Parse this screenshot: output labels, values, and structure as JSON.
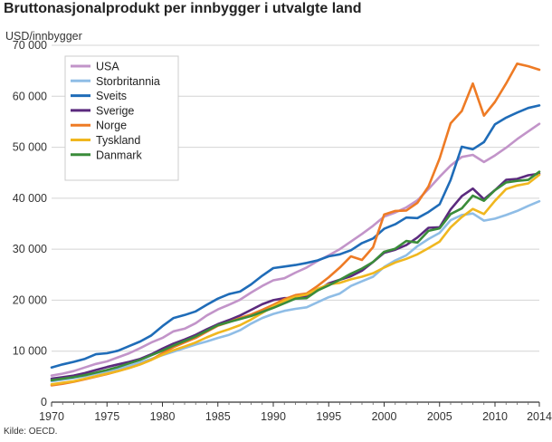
{
  "title": "Bruttonasjonalprodukt per innbygger i utvalgte land",
  "source": "Kilde: OECD.",
  "chart_data": {
    "type": "line",
    "ylabel": "USD/innbygger",
    "xlim": [
      1970,
      2014
    ],
    "ylim": [
      0,
      70000
    ],
    "grid": true,
    "legend": "top-left",
    "x": [
      1970,
      1971,
      1972,
      1973,
      1974,
      1975,
      1976,
      1977,
      1978,
      1979,
      1980,
      1981,
      1982,
      1983,
      1984,
      1985,
      1986,
      1987,
      1988,
      1989,
      1990,
      1991,
      1992,
      1993,
      1994,
      1995,
      1996,
      1997,
      1998,
      1999,
      2000,
      2001,
      2002,
      2003,
      2004,
      2005,
      2006,
      2007,
      2008,
      2009,
      2010,
      2011,
      2012,
      2013,
      2014
    ],
    "x_ticks": [
      1970,
      1975,
      1980,
      1985,
      1990,
      1995,
      2000,
      2005,
      2010,
      2014
    ],
    "y_ticks": [
      0,
      10000,
      20000,
      30000,
      40000,
      50000,
      60000,
      70000
    ],
    "y_tick_labels": [
      "0",
      "10 000",
      "20 000",
      "30 000",
      "40 000",
      "50 000",
      "60 000",
      "70 000"
    ],
    "series": [
      {
        "name": "USA",
        "color": "#c294c9",
        "values": [
          5200,
          5600,
          6100,
          6800,
          7500,
          8000,
          8800,
          9600,
          10600,
          11700,
          12600,
          13900,
          14400,
          15500,
          17000,
          18200,
          19100,
          20100,
          21500,
          22800,
          23900,
          24300,
          25400,
          26400,
          27700,
          28800,
          30000,
          31500,
          33000,
          34600,
          36400,
          37200,
          38200,
          39600,
          41800,
          44200,
          46400,
          48100,
          48500,
          47100,
          48400,
          49900,
          51600,
          53100,
          54600
        ]
      },
      {
        "name": "Storbritannia",
        "color": "#8fbde6",
        "values": [
          4100,
          4400,
          4700,
          5100,
          5600,
          6000,
          6500,
          7100,
          7800,
          8500,
          9200,
          9900,
          10600,
          11300,
          11900,
          12600,
          13200,
          14100,
          15400,
          16500,
          17300,
          17900,
          18300,
          18600,
          19600,
          20600,
          21300,
          22800,
          23700,
          24600,
          26500,
          27800,
          28800,
          30600,
          32000,
          33200,
          35700,
          36700,
          37000,
          35600,
          36000,
          36700,
          37500,
          38500,
          39400
        ]
      },
      {
        "name": "Sveits",
        "color": "#1f6cb8",
        "values": [
          6800,
          7400,
          7900,
          8500,
          9400,
          9600,
          10100,
          11000,
          11900,
          13100,
          14900,
          16500,
          17100,
          17800,
          19100,
          20300,
          21200,
          21700,
          23100,
          24800,
          26300,
          26600,
          26900,
          27300,
          27800,
          28600,
          29000,
          29800,
          31200,
          32100,
          34000,
          34900,
          36200,
          36100,
          37300,
          38800,
          43600,
          50100,
          49600,
          51000,
          54500,
          55800,
          56800,
          57700,
          58200
        ]
      },
      {
        "name": "Sverige",
        "color": "#5b2a7e",
        "values": [
          4600,
          4900,
          5200,
          5700,
          6300,
          6900,
          7400,
          7900,
          8500,
          9400,
          10500,
          11500,
          12300,
          13200,
          14300,
          15300,
          16100,
          17000,
          18100,
          19200,
          20000,
          20400,
          20400,
          20700,
          21900,
          23300,
          24000,
          24700,
          25800,
          27500,
          29300,
          29900,
          30800,
          32300,
          34200,
          34300,
          37800,
          40400,
          41900,
          39800,
          41600,
          43600,
          43800,
          44500,
          44800
        ]
      },
      {
        "name": "Norge",
        "color": "#ee7b25",
        "values": [
          3300,
          3600,
          4000,
          4500,
          5000,
          5500,
          6100,
          6700,
          7400,
          8300,
          9600,
          10800,
          11700,
          12600,
          13800,
          15000,
          15700,
          16500,
          17200,
          18100,
          19100,
          20200,
          21000,
          21300,
          22800,
          24500,
          26400,
          28600,
          27900,
          30400,
          36800,
          37500,
          37600,
          39100,
          42300,
          47800,
          54700,
          57100,
          62500,
          56200,
          58900,
          62500,
          66400,
          65900,
          65200
        ]
      },
      {
        "name": "Tyskland",
        "color": "#f0b71f",
        "values": [
          3500,
          3800,
          4100,
          4600,
          5100,
          5600,
          6100,
          6700,
          7400,
          8300,
          9300,
          10200,
          10900,
          11700,
          12700,
          13600,
          14300,
          15100,
          16200,
          17500,
          18800,
          19900,
          20700,
          21100,
          22200,
          23100,
          23400,
          24100,
          24600,
          25300,
          26400,
          27400,
          28100,
          29000,
          30200,
          31500,
          34300,
          36300,
          37900,
          36900,
          39500,
          41800,
          42500,
          42900,
          44600
        ]
      },
      {
        "name": "Danmark",
        "color": "#3a8c3a",
        "values": [
          4300,
          4600,
          4900,
          5300,
          5800,
          6300,
          6900,
          7600,
          8300,
          9200,
          10100,
          11100,
          12000,
          12900,
          14000,
          15100,
          15700,
          16300,
          16900,
          17700,
          18500,
          19400,
          20300,
          20400,
          21900,
          22900,
          24000,
          25200,
          26200,
          27500,
          29500,
          30100,
          31600,
          31300,
          33600,
          34100,
          36900,
          38000,
          40500,
          39500,
          41600,
          43100,
          43400,
          43600,
          45200
        ]
      }
    ]
  }
}
